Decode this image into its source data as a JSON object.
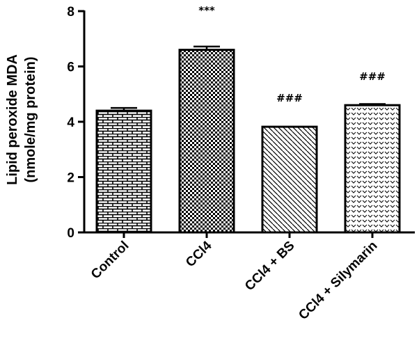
{
  "chart_data": {
    "type": "bar",
    "categories": [
      "Control",
      "CCl4",
      "CCl4 + BS",
      "CCl4 + Silymarin"
    ],
    "values": [
      4.4,
      6.6,
      3.82,
      4.6
    ],
    "errors": [
      0.1,
      0.12,
      0.0,
      0.04
    ],
    "annotations": [
      "",
      "***",
      "###",
      "###"
    ],
    "patterns": [
      "brick",
      "checker",
      "diagonal",
      "chevron"
    ],
    "ylabel_line1": "Lipid peroxide MDA",
    "ylabel_line2": "(nmole/mg protein)",
    "ylim": [
      0,
      8
    ],
    "yticks": [
      0,
      2,
      4,
      6,
      8
    ],
    "grid": false,
    "bar_color": "#000000"
  }
}
